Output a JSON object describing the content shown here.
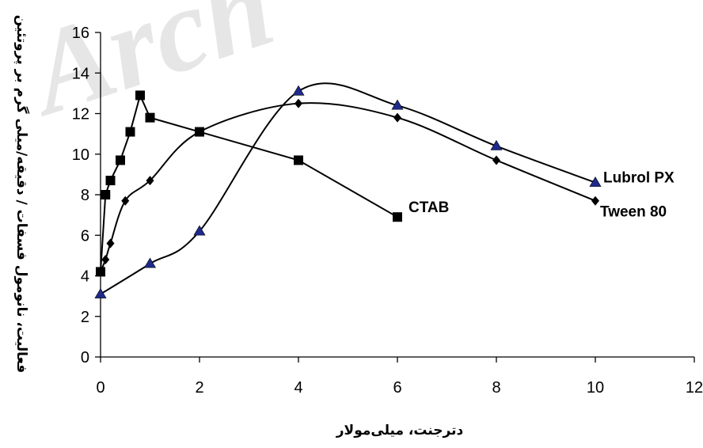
{
  "chart_data": {
    "type": "line",
    "xlabel": "دترجنت، میلی‌مولار",
    "ylabel": "فعالیت، نانومول فسفات / دقیقه/میلی گرم بر پروتئین",
    "xlim": [
      0,
      12
    ],
    "ylim": [
      0,
      16
    ],
    "xticks": [
      0,
      2,
      4,
      6,
      8,
      10,
      12
    ],
    "yticks": [
      0,
      2,
      4,
      6,
      8,
      10,
      12,
      14,
      16
    ],
    "grid": false,
    "series": [
      {
        "name": "CTAB",
        "marker": "square",
        "color": "#000000",
        "smooth": false,
        "x": [
          0,
          0.1,
          0.2,
          0.4,
          0.6,
          0.8,
          1,
          2,
          4,
          6
        ],
        "y": [
          4.2,
          8.0,
          8.7,
          9.7,
          11.1,
          12.9,
          11.8,
          11.1,
          9.7,
          6.9
        ]
      },
      {
        "name": "Tween 80",
        "marker": "diamond",
        "color": "#000000",
        "smooth": true,
        "x": [
          0,
          0.1,
          0.2,
          0.5,
          1,
          2,
          4,
          6,
          8,
          10
        ],
        "y": [
          4.2,
          4.8,
          5.6,
          7.7,
          8.7,
          11.1,
          12.5,
          11.8,
          9.7,
          7.7
        ]
      },
      {
        "name": "Lubrol PX",
        "marker": "triangle",
        "color": "#1f2a8c",
        "smooth": true,
        "x": [
          0,
          1,
          2,
          4,
          6,
          8,
          10
        ],
        "y": [
          3.1,
          4.6,
          6.2,
          13.1,
          12.4,
          10.4,
          8.6
        ]
      }
    ]
  },
  "watermark": {
    "text": "Arch"
  }
}
